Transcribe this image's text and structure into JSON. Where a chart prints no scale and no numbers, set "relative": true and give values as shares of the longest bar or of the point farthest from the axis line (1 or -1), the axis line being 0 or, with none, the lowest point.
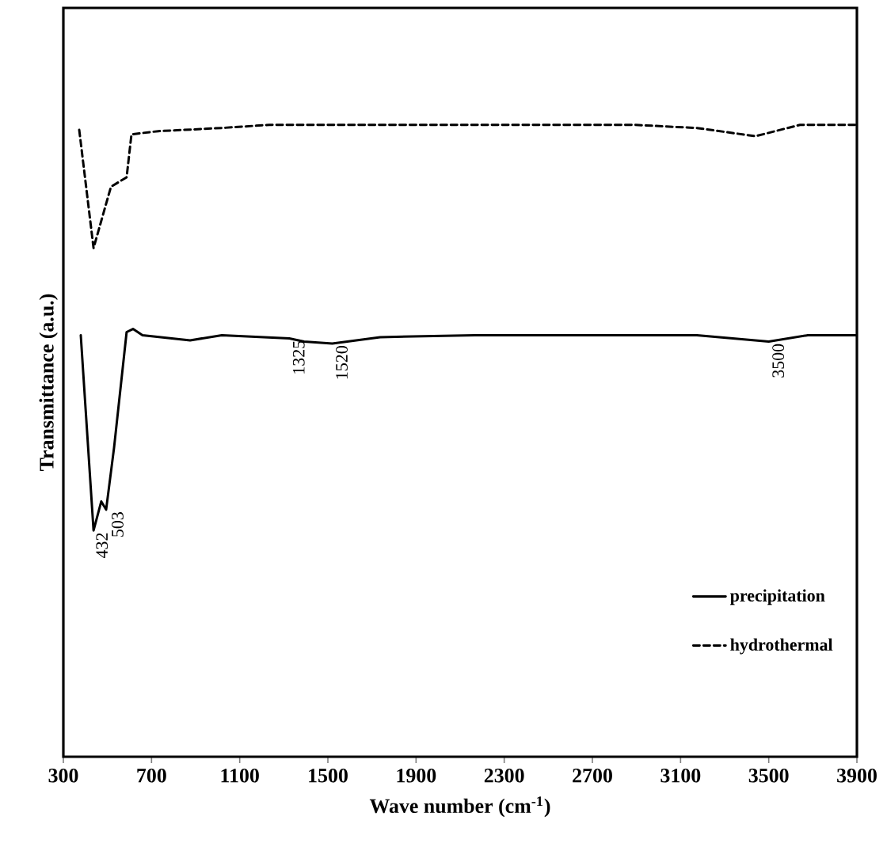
{
  "chart_data": {
    "type": "line",
    "relative": true,
    "xlabel": "Wave number (cm$^{-1}$)",
    "ylabel": "Transmittance (a.u.)",
    "xlim": [
      300,
      3900
    ],
    "xticks": [
      300,
      700,
      1100,
      1500,
      1900,
      2300,
      2700,
      3100,
      3500,
      3900
    ],
    "legend": "bottom right",
    "grid": false,
    "marker": "none",
    "tick_labels": "x",
    "series": [
      {
        "name": "precipitation",
        "color": "#000000",
        "line_style": "solid",
        "x": [
          379,
          437,
          472,
          494,
          530,
          587,
          616,
          659,
          875,
          1019,
          1325,
          1392,
          1520,
          1737,
          2168,
          3174,
          3500,
          3677,
          3900
        ],
        "values": [
          0.667,
          0.358,
          0.404,
          0.391,
          0.489,
          0.672,
          0.677,
          0.667,
          0.659,
          0.667,
          0.662,
          0.657,
          0.654,
          0.664,
          0.667,
          0.667,
          0.657,
          0.667,
          0.667
        ]
      },
      {
        "name": "hydrothermal",
        "color": "#000000",
        "line_style": "dashed",
        "x": [
          372,
          437,
          516,
          587,
          609,
          731,
          1019,
          1234,
          2168,
          2887,
          3174,
          3440,
          3642,
          3900
        ],
        "values": [
          0.992,
          0.805,
          0.902,
          0.917,
          0.985,
          0.99,
          0.995,
          1.0,
          1.0,
          1.0,
          0.995,
          0.982,
          1.0,
          1.0
        ]
      }
    ],
    "annotations": [
      {
        "text": "432",
        "x": 432,
        "y": 0.358
      },
      {
        "text": "503",
        "x": 503,
        "y": 0.391
      },
      {
        "text": "1325",
        "x": 1325,
        "y": 0.662
      },
      {
        "text": "1520",
        "x": 1520,
        "y": 0.654
      },
      {
        "text": "3500",
        "x": 3500,
        "y": 0.657
      }
    ]
  }
}
